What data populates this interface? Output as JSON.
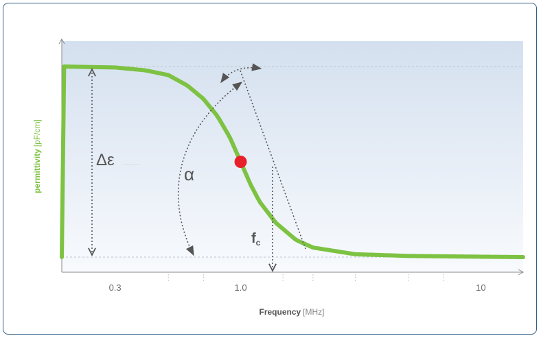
{
  "chart_data": {
    "type": "line",
    "xscale": "log",
    "xlim": [
      0.18,
      15
    ],
    "ylim": [
      0,
      1.1
    ],
    "x_ticks": [
      {
        "value": 0.3,
        "label": "0.3"
      },
      {
        "value": 1.0,
        "label": "1.0"
      },
      {
        "value": 10,
        "label": "10"
      }
    ],
    "minor_ticks": [
      0.5,
      0.7,
      1.5,
      2.0,
      3.0,
      5.0,
      7.0
    ],
    "xlabel_bold": "Frequency",
    "xlabel_unit": "[MHz]",
    "ylabel_bold": "permittivity",
    "ylabel_unit": "[pF/cm]",
    "series": [
      {
        "color": "#7dc242",
        "x": [
          0.18,
          0.3,
          0.4,
          0.5,
          0.6,
          0.7,
          0.8,
          0.9,
          1.0,
          1.1,
          1.2,
          1.4,
          1.7,
          2.0,
          3.0,
          5.0,
          10,
          15
        ],
        "y": [
          1.0,
          0.995,
          0.98,
          0.955,
          0.9,
          0.83,
          0.74,
          0.63,
          0.5,
          0.38,
          0.29,
          0.18,
          0.09,
          0.05,
          0.015,
          0.006,
          0.002,
          0.0
        ]
      }
    ],
    "marker": {
      "x": 1.0,
      "y": 0.5,
      "color": "#e8202a"
    },
    "annotations": {
      "delta_epsilon": "Δε",
      "alpha": "α",
      "fc_main": "f",
      "fc_sub": "c"
    },
    "grid": "dashed horizontal lines at plateaus"
  }
}
